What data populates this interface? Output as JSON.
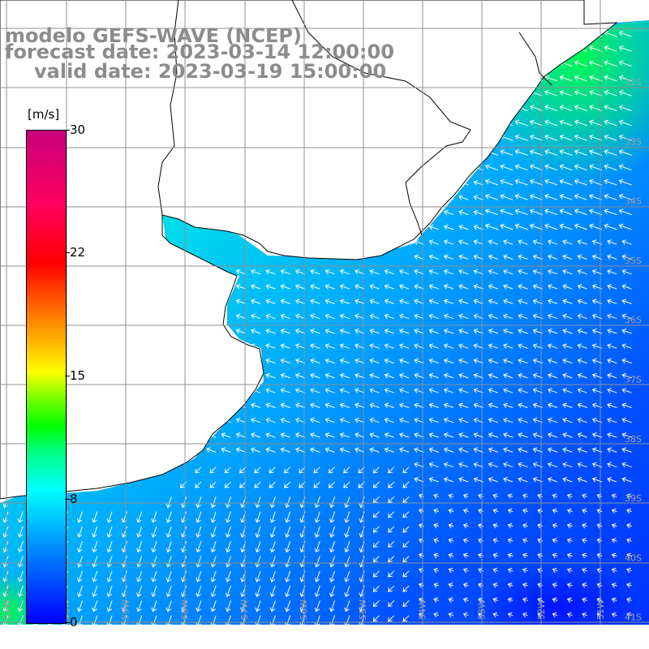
{
  "title": {
    "line1": "modelo GEFS-WAVE (NCEP)",
    "line2": "forecast date: 2023-03-14 12:00:00",
    "line3": "valid date: 2023-03-19 15:00:00"
  },
  "colorbar": {
    "unit": "[m/s]",
    "ticks": [
      "30",
      "22",
      "15",
      "8",
      "0"
    ],
    "min": 0,
    "max": 30
  },
  "map": {
    "region": "South Atlantic off Uruguay / Southern Brazil",
    "lat_labels": [
      "32S",
      "33S",
      "34S",
      "35S",
      "36S",
      "37S",
      "38S",
      "39S",
      "40S",
      "41S"
    ],
    "lon_labels": [
      "61W",
      "60W",
      "59W",
      "58W",
      "57W",
      "56W",
      "55W",
      "54W",
      "53W",
      "52W",
      "51W"
    ],
    "colors": {
      "land": "#ffffff",
      "grid": "#909090",
      "coast": "#000000",
      "arrows": "#ffffff"
    }
  }
}
